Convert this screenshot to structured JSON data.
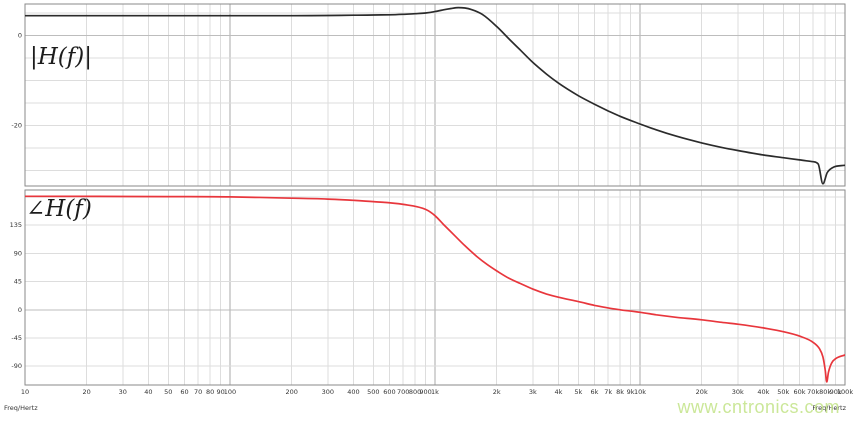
{
  "watermark_text": "www.cntronics.com",
  "footer": {
    "left": "Freq/Hertz",
    "right": "Freq/Hertz"
  },
  "colors": {
    "background": "#ffffff",
    "frame": "#8a8a8a",
    "grid_minor": "#dddddd",
    "grid_major": "#a9a9a9",
    "grid_zero": "#bdbdbd",
    "magnitude_curve": "#2b2b2b",
    "phase_curve": "#e8363c",
    "watermark": "#c6e58e"
  },
  "x_axis": {
    "scale": "log",
    "min": 10,
    "max": 100000,
    "ticks": [
      {
        "v": 10,
        "l": "10"
      },
      {
        "v": 20,
        "l": "20"
      },
      {
        "v": 30,
        "l": "30"
      },
      {
        "v": 40,
        "l": "40"
      },
      {
        "v": 50,
        "l": "50"
      },
      {
        "v": 60,
        "l": "60"
      },
      {
        "v": 70,
        "l": "70"
      },
      {
        "v": 80,
        "l": "80"
      },
      {
        "v": 90,
        "l": "90"
      },
      {
        "v": 100,
        "l": "100"
      },
      {
        "v": 200,
        "l": "200"
      },
      {
        "v": 300,
        "l": "300"
      },
      {
        "v": 400,
        "l": "400"
      },
      {
        "v": 500,
        "l": "500"
      },
      {
        "v": 600,
        "l": "600"
      },
      {
        "v": 700,
        "l": "700"
      },
      {
        "v": 800,
        "l": "800"
      },
      {
        "v": 900,
        "l": "900"
      },
      {
        "v": 1000,
        "l": "1k"
      },
      {
        "v": 2000,
        "l": "2k"
      },
      {
        "v": 3000,
        "l": "3k"
      },
      {
        "v": 4000,
        "l": "4k"
      },
      {
        "v": 5000,
        "l": "5k"
      },
      {
        "v": 6000,
        "l": "6k"
      },
      {
        "v": 7000,
        "l": "7k"
      },
      {
        "v": 8000,
        "l": "8k"
      },
      {
        "v": 9000,
        "l": "9k"
      },
      {
        "v": 10000,
        "l": "10k"
      },
      {
        "v": 20000,
        "l": "20k"
      },
      {
        "v": 30000,
        "l": "30k"
      },
      {
        "v": 40000,
        "l": "40k"
      },
      {
        "v": 50000,
        "l": "50k"
      },
      {
        "v": 60000,
        "l": "60k"
      },
      {
        "v": 70000,
        "l": "70k"
      },
      {
        "v": 80000,
        "l": "80k"
      },
      {
        "v": 90000,
        "l": "90k"
      },
      {
        "v": 100000,
        "l": "100k"
      }
    ]
  },
  "chart_data": [
    {
      "type": "line",
      "title": "|H(f)|",
      "xlabel": "Freq/Hertz",
      "xscale": "log",
      "xlim": [
        10,
        100000
      ],
      "ylim": [
        -33.5,
        7
      ],
      "grid": true,
      "y_grid_step": 5,
      "yticks": [
        {
          "v": 0,
          "l": "0"
        },
        {
          "v": -20,
          "l": "-20"
        }
      ],
      "series": [
        {
          "name": "magnitude_dB",
          "color_key": "magnitude_curve",
          "points": [
            [
              10,
              4.4
            ],
            [
              20,
              4.4
            ],
            [
              40,
              4.4
            ],
            [
              70,
              4.4
            ],
            [
              100,
              4.4
            ],
            [
              200,
              4.4
            ],
            [
              300,
              4.45
            ],
            [
              400,
              4.5
            ],
            [
              500,
              4.55
            ],
            [
              600,
              4.6
            ],
            [
              700,
              4.7
            ],
            [
              800,
              4.85
            ],
            [
              900,
              5.0
            ],
            [
              1000,
              5.3
            ],
            [
              1100,
              5.7
            ],
            [
              1200,
              6.0
            ],
            [
              1300,
              6.2
            ],
            [
              1400,
              6.1
            ],
            [
              1500,
              5.8
            ],
            [
              1700,
              4.7
            ],
            [
              2000,
              2.0
            ],
            [
              2300,
              -0.8
            ],
            [
              2600,
              -3.2
            ],
            [
              3000,
              -6.0
            ],
            [
              3500,
              -8.6
            ],
            [
              4000,
              -10.6
            ],
            [
              5000,
              -13.4
            ],
            [
              6000,
              -15.3
            ],
            [
              7000,
              -16.8
            ],
            [
              8000,
              -18.0
            ],
            [
              10000,
              -19.7
            ],
            [
              12000,
              -21.0
            ],
            [
              15000,
              -22.4
            ],
            [
              20000,
              -23.9
            ],
            [
              25000,
              -24.9
            ],
            [
              30000,
              -25.6
            ],
            [
              40000,
              -26.6
            ],
            [
              50000,
              -27.2
            ],
            [
              60000,
              -27.7
            ],
            [
              70000,
              -28.1
            ],
            [
              74000,
              -28.6
            ],
            [
              78000,
              -33.0
            ],
            [
              82000,
              -30.5
            ],
            [
              88000,
              -29.3
            ],
            [
              100000,
              -28.9
            ]
          ]
        }
      ]
    },
    {
      "type": "line",
      "title": "∠H(f)",
      "xlabel": "Freq/Hertz",
      "xscale": "log",
      "xlim": [
        10,
        100000
      ],
      "ylim": [
        -120,
        191
      ],
      "grid": true,
      "y_grid_step": 45,
      "yticks": [
        {
          "v": 135,
          "l": "135"
        },
        {
          "v": 90,
          "l": "90"
        },
        {
          "v": 45,
          "l": "45"
        },
        {
          "v": 0,
          "l": "0"
        },
        {
          "v": -45,
          "l": "-45"
        },
        {
          "v": -90,
          "l": "-90"
        }
      ],
      "series": [
        {
          "name": "phase_degrees",
          "color_key": "phase_curve",
          "points": [
            [
              10,
              181
            ],
            [
              50,
              180.5
            ],
            [
              100,
              180
            ],
            [
              200,
              178
            ],
            [
              300,
              176.5
            ],
            [
              400,
              174.5
            ],
            [
              500,
              172.5
            ],
            [
              700,
              168
            ],
            [
              900,
              160
            ],
            [
              1000,
              150
            ],
            [
              1100,
              136
            ],
            [
              1250,
              118
            ],
            [
              1400,
              102
            ],
            [
              1600,
              85
            ],
            [
              1800,
              72
            ],
            [
              2000,
              62
            ],
            [
              2300,
              50
            ],
            [
              2600,
              42
            ],
            [
              3000,
              33
            ],
            [
              3500,
              25
            ],
            [
              4000,
              20
            ],
            [
              5000,
              13
            ],
            [
              6000,
              7
            ],
            [
              7000,
              3
            ],
            [
              8000,
              0
            ],
            [
              10000,
              -4
            ],
            [
              12000,
              -8
            ],
            [
              15000,
              -12
            ],
            [
              20000,
              -16
            ],
            [
              25000,
              -20
            ],
            [
              30000,
              -23
            ],
            [
              40000,
              -29
            ],
            [
              50000,
              -35
            ],
            [
              60000,
              -42
            ],
            [
              70000,
              -52
            ],
            [
              75000,
              -62
            ],
            [
              78000,
              -75
            ],
            [
              80000,
              -95
            ],
            [
              81500,
              -115
            ],
            [
              83000,
              -100
            ],
            [
              86000,
              -85
            ],
            [
              90000,
              -78
            ],
            [
              100000,
              -72
            ]
          ]
        }
      ]
    }
  ]
}
